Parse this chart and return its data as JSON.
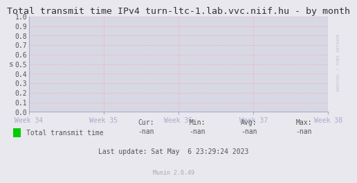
{
  "title": "Total transmit time IPv4 turn-ltc-1.lab.vvc.niif.hu - by month",
  "ylabel": "s",
  "x_tick_labels": [
    "Week 34",
    "Week 35",
    "Week 36",
    "Week 37",
    "Week 38"
  ],
  "y_ticks": [
    0.0,
    0.1,
    0.2,
    0.3,
    0.4,
    0.5,
    0.6,
    0.7,
    0.8,
    0.9,
    1.0
  ],
  "ylim": [
    0.0,
    1.0
  ],
  "fig_bg_color": "#e8e8ee",
  "plot_bg_color": "#e8e8ee",
  "inner_plot_bg": "#d8d8e4",
  "grid_color": "#f0a0a0",
  "grid_style": "dotted",
  "legend_label": "Total transmit time",
  "legend_color": "#00cc00",
  "cur_label": "Cur:",
  "min_label": "Min:",
  "avg_label": "Avg:",
  "max_label": "Max:",
  "cur": "-nan",
  "min": "-nan",
  "avg": "-nan",
  "max": "-nan",
  "last_update": "Last update: Sat May  6 23:29:24 2023",
  "munin_version": "Munin 2.0.49",
  "watermark": "RRDTOOL / TOBI OETIKER",
  "title_fontsize": 9.5,
  "tick_fontsize": 7,
  "legend_fontsize": 7,
  "stats_fontsize": 7,
  "small_fontsize": 6,
  "axis_color": "#aaaacc",
  "text_color": "#555555"
}
